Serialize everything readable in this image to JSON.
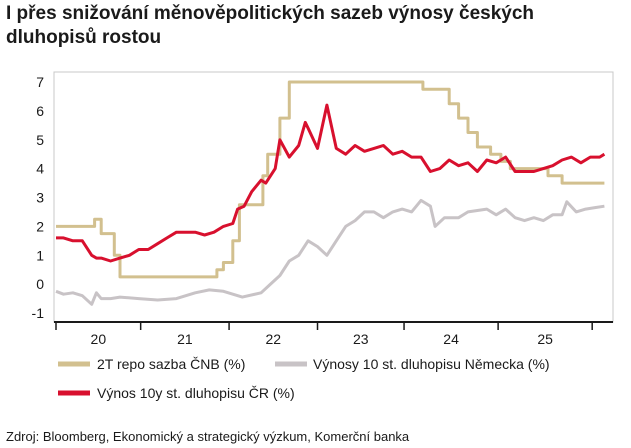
{
  "title": "I přes snižování měnověpolitických sazeb výnosy českých dluhopisů rostou",
  "source": "Zdroj: Bloomberg, Ekonomický a strategický výzkum, Komerční banka",
  "colors": {
    "repo": "#d2c08f",
    "germany": "#c8c3c6",
    "czech": "#d8102e",
    "axis": "#1a1a1a"
  },
  "chart_data": {
    "type": "line",
    "title": "I přes snižování měnověpolitických sazeb výnosy českých dluhopisů rostou",
    "xlabel": "",
    "ylabel": "",
    "ylim": [
      -1,
      7
    ],
    "y_ticks": [
      "-1",
      "0",
      "1",
      "2",
      "3",
      "4",
      "5",
      "6",
      "7"
    ],
    "x_ticks": [
      "20",
      "21",
      "22",
      "23",
      "24",
      "25"
    ],
    "xlim": [
      2019.72,
      2025.62
    ],
    "legend": [
      "2T repo sazba ČNB (%)",
      "Výnosy 10 st. dluhopisu Německa (%)",
      "Výnos 10y st. dluhopisu ČR (%)"
    ],
    "legend_position": "bottom",
    "series": [
      {
        "name": "2T repo sazba ČNB (%)",
        "step": true,
        "x": [
          2019.72,
          2020.13,
          2020.2,
          2020.34,
          2020.4,
          2021.43,
          2021.5,
          2021.6,
          2021.67,
          2021.75,
          2021.85,
          2021.92,
          2021.97,
          2022.1,
          2022.2,
          2022.42,
          2023.62,
          2023.9,
          2024.0,
          2024.1,
          2024.2,
          2024.34,
          2024.45,
          2024.55,
          2024.68,
          2024.8,
          2024.95,
          2025.1,
          2025.55
        ],
        "values": [
          2.0,
          2.25,
          1.75,
          1.0,
          0.25,
          0.5,
          0.75,
          1.5,
          2.75,
          2.75,
          2.75,
          3.75,
          4.5,
          5.75,
          7.0,
          7.0,
          6.75,
          6.25,
          5.75,
          5.25,
          4.75,
          4.5,
          4.25,
          4.0,
          4.0,
          4.0,
          3.75,
          3.5,
          3.5
        ]
      },
      {
        "name": "Výnosy 10 st. dluhopisu Německa (%)",
        "step": false,
        "x": [
          2019.72,
          2019.8,
          2019.9,
          2020.0,
          2020.1,
          2020.15,
          2020.2,
          2020.3,
          2020.4,
          2020.6,
          2020.8,
          2021.0,
          2021.2,
          2021.35,
          2021.5,
          2021.7,
          2021.9,
          2022.0,
          2022.1,
          2022.2,
          2022.3,
          2022.4,
          2022.5,
          2022.6,
          2022.7,
          2022.8,
          2022.9,
          2023.0,
          2023.1,
          2023.2,
          2023.3,
          2023.4,
          2023.5,
          2023.6,
          2023.7,
          2023.75,
          2023.85,
          2024.0,
          2024.1,
          2024.2,
          2024.3,
          2024.4,
          2024.5,
          2024.6,
          2024.7,
          2024.8,
          2024.9,
          2025.0,
          2025.1,
          2025.15,
          2025.25,
          2025.35,
          2025.45,
          2025.55
        ],
        "values": [
          -0.25,
          -0.35,
          -0.3,
          -0.4,
          -0.7,
          -0.3,
          -0.5,
          -0.5,
          -0.45,
          -0.5,
          -0.55,
          -0.5,
          -0.3,
          -0.2,
          -0.25,
          -0.45,
          -0.3,
          0.0,
          0.3,
          0.8,
          1.0,
          1.5,
          1.3,
          1.0,
          1.5,
          2.0,
          2.2,
          2.5,
          2.5,
          2.3,
          2.5,
          2.6,
          2.5,
          2.9,
          2.7,
          2.0,
          2.3,
          2.3,
          2.5,
          2.55,
          2.6,
          2.4,
          2.6,
          2.3,
          2.2,
          2.3,
          2.2,
          2.4,
          2.4,
          2.85,
          2.5,
          2.6,
          2.65,
          2.7
        ]
      },
      {
        "name": "Výnos 10y st. dluhopisu ČR (%)",
        "step": false,
        "x": [
          2019.72,
          2019.8,
          2019.9,
          2020.0,
          2020.1,
          2020.15,
          2020.2,
          2020.3,
          2020.4,
          2020.5,
          2020.6,
          2020.7,
          2020.8,
          2020.9,
          2021.0,
          2021.1,
          2021.2,
          2021.3,
          2021.4,
          2021.5,
          2021.6,
          2021.65,
          2021.72,
          2021.8,
          2021.9,
          2021.95,
          2022.05,
          2022.1,
          2022.2,
          2022.3,
          2022.37,
          2022.4,
          2022.5,
          2022.6,
          2022.7,
          2022.8,
          2022.9,
          2023.0,
          2023.1,
          2023.2,
          2023.3,
          2023.4,
          2023.5,
          2023.6,
          2023.7,
          2023.8,
          2023.9,
          2024.0,
          2024.1,
          2024.2,
          2024.3,
          2024.4,
          2024.5,
          2024.6,
          2024.7,
          2024.8,
          2024.9,
          2025.0,
          2025.1,
          2025.2,
          2025.3,
          2025.4,
          2025.5,
          2025.55
        ],
        "values": [
          1.6,
          1.6,
          1.5,
          1.5,
          1.0,
          0.9,
          0.9,
          0.8,
          0.9,
          1.0,
          1.2,
          1.2,
          1.4,
          1.6,
          1.8,
          1.8,
          1.8,
          1.7,
          1.8,
          2.0,
          2.1,
          2.6,
          2.7,
          3.2,
          3.6,
          3.5,
          4.0,
          5.0,
          4.4,
          4.8,
          5.6,
          5.4,
          4.7,
          6.2,
          4.7,
          4.5,
          4.8,
          4.6,
          4.7,
          4.8,
          4.5,
          4.6,
          4.4,
          4.4,
          3.9,
          4.0,
          4.3,
          4.1,
          4.2,
          3.9,
          4.3,
          4.2,
          4.4,
          3.9,
          3.9,
          3.9,
          4.0,
          4.1,
          4.3,
          4.4,
          4.2,
          4.4,
          4.4,
          4.5
        ]
      }
    ]
  }
}
